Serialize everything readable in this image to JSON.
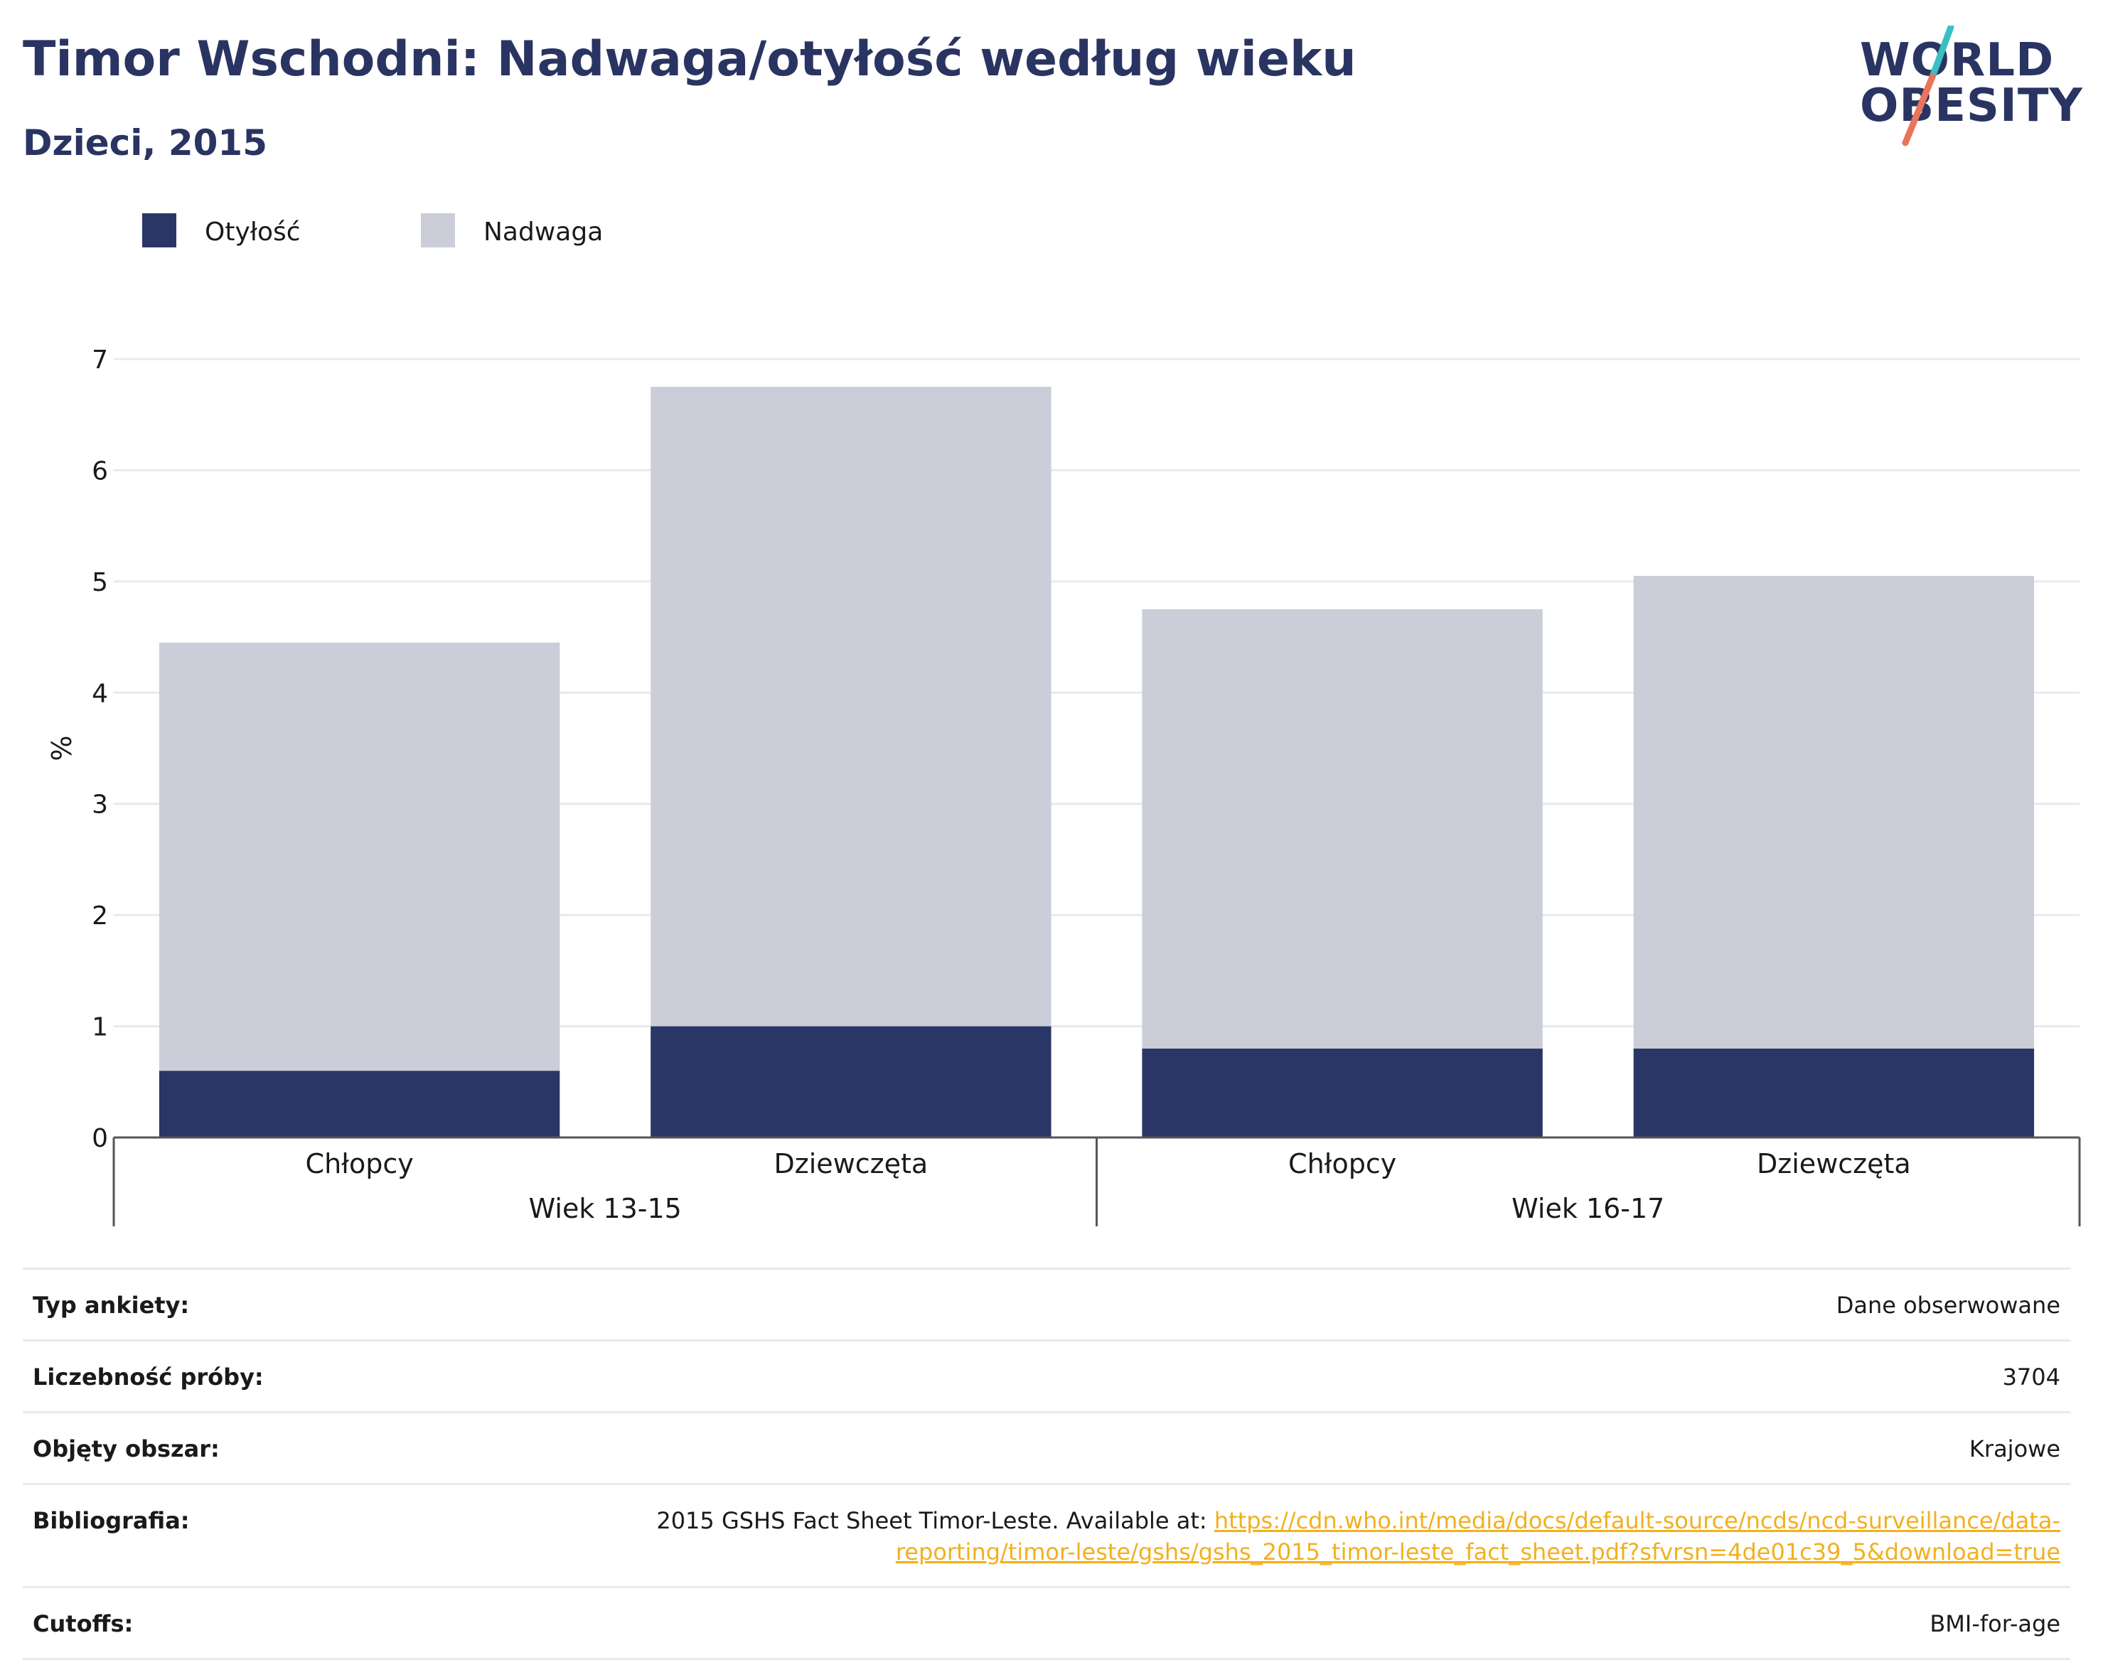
{
  "header": {
    "title": "Timor Wschodni: Nadwaga/otyłość według wieku",
    "subtitle": "Dzieci, 2015"
  },
  "logo": {
    "line1": "WORLD",
    "line2": "OBESITY"
  },
  "colors": {
    "obesity": "#2a3665",
    "overweight": "#cbcdd8",
    "brand": "#2a3462",
    "link": "#f2b01e"
  },
  "chart_data": {
    "type": "bar",
    "stacked": true,
    "ylabel": "%",
    "ylim": [
      0,
      7
    ],
    "yticks": [
      0,
      1,
      2,
      3,
      4,
      5,
      6,
      7
    ],
    "grid": true,
    "legend_placement": "top-left",
    "groups": [
      {
        "label": "Wiek 13-15",
        "categories": [
          "Chłopcy",
          "Dziewczęta"
        ]
      },
      {
        "label": "Wiek 16-17",
        "categories": [
          "Chłopcy",
          "Dziewczęta"
        ]
      }
    ],
    "series": [
      {
        "name": "Otyłość",
        "color": "#2a3665",
        "values": [
          0.6,
          1.0,
          0.8,
          0.8
        ]
      },
      {
        "name": "Nadwaga",
        "color": "#cbcdd8",
        "values": [
          3.85,
          5.75,
          3.95,
          4.25
        ]
      }
    ]
  },
  "info": [
    {
      "label": "Typ ankiety:",
      "value": "Dane obserwowane"
    },
    {
      "label": "Liczebność próby:",
      "value": "3704"
    },
    {
      "label": "Objęty obszar:",
      "value": "Krajowe"
    },
    {
      "label": "Bibliografia:",
      "value": "2015 GSHS Fact Sheet Timor-Leste. Available at: ",
      "link": "https://cdn.who.int/media/docs/default-source/ncds/ncd-surveillance/data-reporting/timor-leste/gshs/gshs_2015_timor-leste_fact_sheet.pdf?sfvrsn=4de01c39_5&download=true"
    },
    {
      "label": "Cutoffs:",
      "value": "BMI-for-age"
    }
  ]
}
